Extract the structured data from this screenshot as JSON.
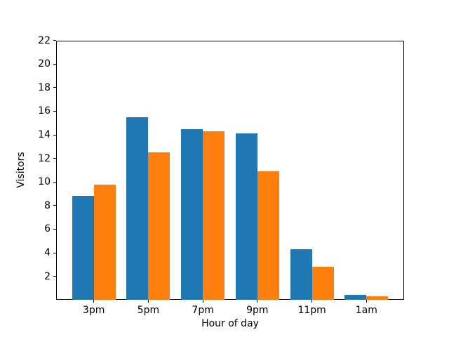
{
  "chart_data": {
    "type": "bar",
    "title": "",
    "xlabel": "Hour of day",
    "ylabel": "Visitors",
    "categories": [
      "3pm",
      "5pm",
      "7pm",
      "9pm",
      "11pm",
      "1am"
    ],
    "series": [
      {
        "name": "blue",
        "color": "#1f77b4",
        "values": [
          8.8,
          15.5,
          14.5,
          14.1,
          4.3,
          0.4
        ]
      },
      {
        "name": "orange",
        "color": "#ff7f0e",
        "values": [
          9.8,
          12.5,
          14.3,
          10.9,
          2.8,
          0.3
        ]
      }
    ],
    "ylim": [
      0,
      22
    ],
    "yticks": [
      2,
      4,
      6,
      8,
      10,
      12,
      14,
      16,
      18,
      20,
      22
    ],
    "legend": "none",
    "grid": false,
    "background": "#ffffff",
    "axis_color": "#000000"
  }
}
